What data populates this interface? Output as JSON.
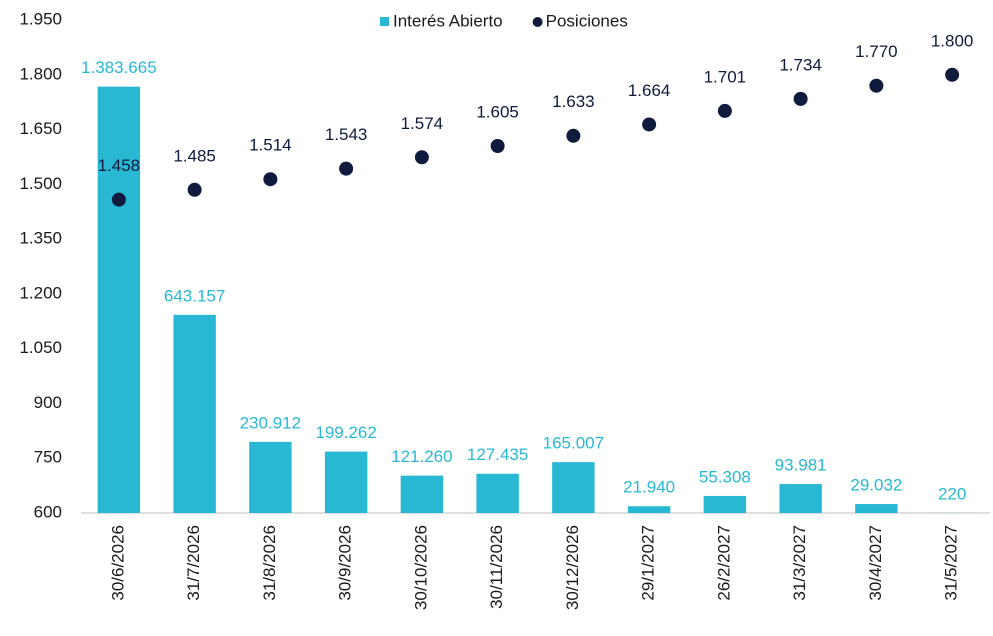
{
  "chart_data": {
    "type": "bar+scatter",
    "categories": [
      "30/6/2026",
      "31/7/2026",
      "31/8/2026",
      "30/9/2026",
      "30/10/2026",
      "30/11/2026",
      "30/12/2026",
      "29/1/2027",
      "26/2/2027",
      "31/3/2027",
      "30/4/2027",
      "31/5/2027"
    ],
    "series": [
      {
        "name": "Interés Abierto",
        "type": "bar",
        "axis": "y2",
        "color": "#29b8d4",
        "values": [
          1383665,
          643157,
          230912,
          199262,
          121260,
          127435,
          165007,
          21940,
          55308,
          93981,
          29032,
          220
        ],
        "value_labels": [
          "1.383.665",
          "643.157",
          "230.912",
          "199.262",
          "121.260",
          "127.435",
          "165.007",
          "21.940",
          "55.308",
          "93.981",
          "29.032",
          "220"
        ]
      },
      {
        "name": "Posiciones",
        "type": "scatter",
        "color": "#0f1a3c",
        "values": [
          1458,
          1485,
          1514,
          1543,
          1574,
          1605,
          1633,
          1664,
          1701,
          1734,
          1770,
          1800
        ],
        "value_labels": [
          "1.458",
          "1.485",
          "1.514",
          "1.543",
          "1.574",
          "1.605",
          "1.633",
          "1.664",
          "1.701",
          "1.734",
          "1.770",
          "1.800"
        ]
      }
    ],
    "ylim": [
      600,
      1950
    ],
    "yticks": [
      {
        "value": 600,
        "label": "600"
      },
      {
        "value": 750,
        "label": "750"
      },
      {
        "value": 900,
        "label": "900"
      },
      {
        "value": 1050,
        "label": "1.050"
      },
      {
        "value": 1200,
        "label": "1.200"
      },
      {
        "value": 1350,
        "label": "1.350"
      },
      {
        "value": 1500,
        "label": "1.500"
      },
      {
        "value": 1650,
        "label": "1.650"
      },
      {
        "value": 1800,
        "label": "1.800"
      },
      {
        "value": 1950,
        "label": "1.950"
      }
    ],
    "y2lim": [
      0,
      1600000
    ],
    "legend": "top"
  }
}
